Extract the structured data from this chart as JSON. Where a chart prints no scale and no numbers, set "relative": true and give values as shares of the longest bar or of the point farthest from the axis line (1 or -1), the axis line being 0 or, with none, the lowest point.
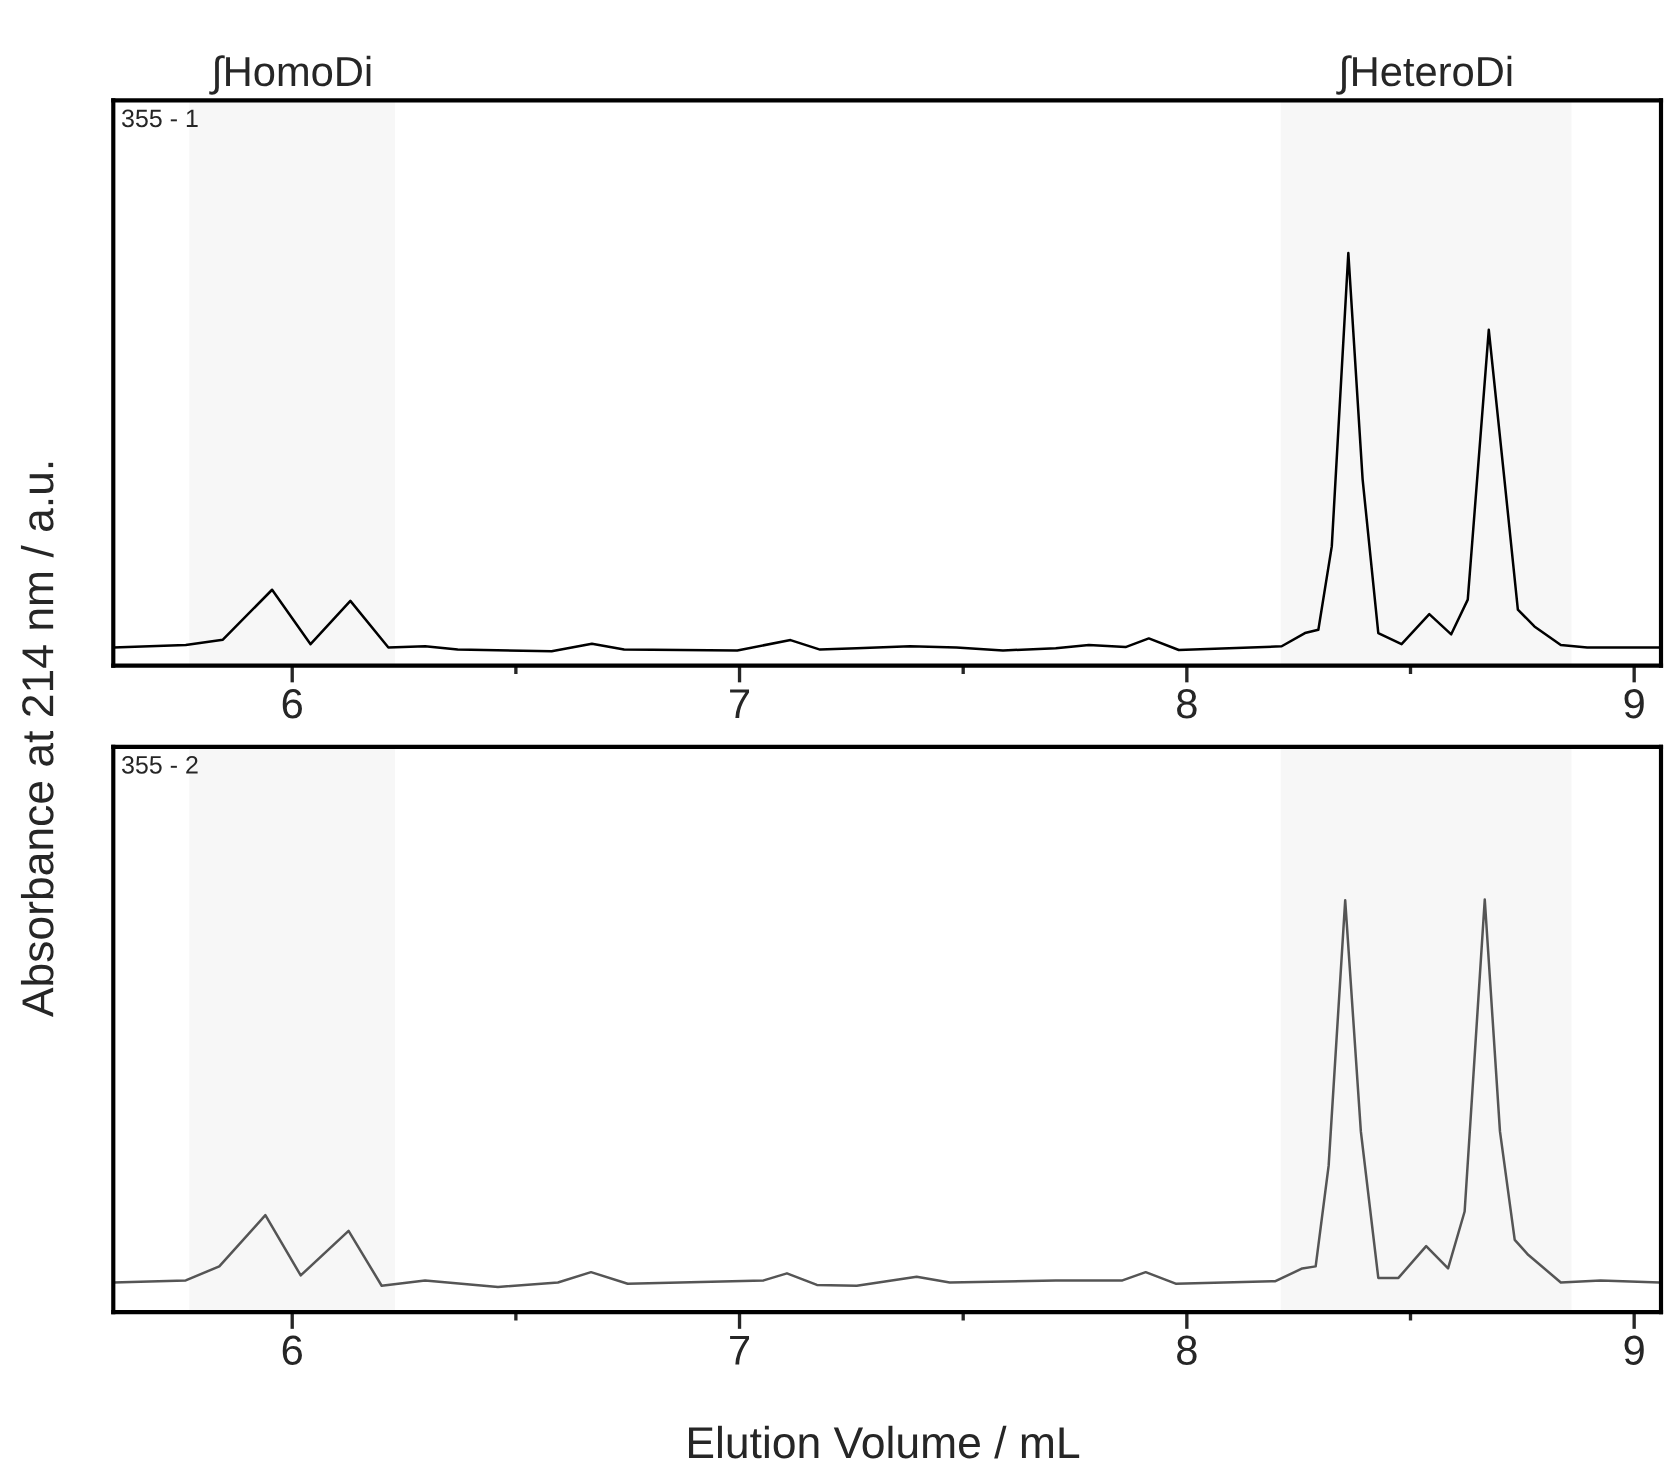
{
  "chart_data": [
    {
      "type": "line",
      "relative": true,
      "xlim": [
        5.6,
        9.06
      ],
      "xticks": [
        6,
        {
          "value": 6.5,
          "label": null
        },
        7,
        {
          "value": 7.5,
          "label": null
        },
        8,
        {
          "value": 8.5,
          "label": null
        },
        9
      ],
      "tick_labels": "x",
      "ylabel": "Absorbance at 214 nm / a.u.",
      "annotations": [
        "355 - 1"
      ],
      "bands": [
        {
          "axis": "x",
          "from": 5.77,
          "to": 6.23,
          "label": "∫HomoDi",
          "color": "#f7f7f7"
        },
        {
          "axis": "x",
          "from": 8.21,
          "to": 8.86,
          "label": "∫HeteroDi",
          "color": "#f7f7f7"
        }
      ],
      "series": [
        {
          "color": "#000000",
          "x": [
            5.6,
            5.762,
            5.845,
            5.955,
            6.041,
            6.13,
            6.215,
            6.297,
            6.37,
            6.58,
            6.67,
            6.742,
            6.995,
            7.114,
            7.18,
            7.262,
            7.381,
            7.485,
            7.589,
            7.707,
            7.781,
            7.863,
            7.915,
            7.982,
            8.212,
            8.264,
            8.294,
            8.324,
            8.361,
            8.393,
            8.428,
            8.48,
            8.542,
            8.591,
            8.628,
            8.675,
            8.71,
            8.74,
            8.777,
            8.836,
            8.895,
            9.057
          ],
          "values": [
            0.044,
            0.05,
            0.063,
            0.184,
            0.052,
            0.157,
            0.044,
            0.047,
            0.039,
            0.035,
            0.053,
            0.039,
            0.037,
            0.062,
            0.039,
            0.042,
            0.047,
            0.044,
            0.037,
            0.042,
            0.05,
            0.045,
            0.066,
            0.038,
            0.047,
            0.079,
            0.087,
            0.289,
            1.0,
            0.451,
            0.079,
            0.052,
            0.125,
            0.076,
            0.16,
            0.814,
            0.451,
            0.136,
            0.095,
            0.05,
            0.044,
            0.044
          ]
        }
      ]
    },
    {
      "type": "line",
      "relative": true,
      "xlim": [
        5.6,
        9.06
      ],
      "xticks": [
        6,
        {
          "value": 6.5,
          "label": null
        },
        7,
        {
          "value": 7.5,
          "label": null
        },
        8,
        {
          "value": 8.5,
          "label": null
        },
        9
      ],
      "tick_labels": "x",
      "xlabel": "Elution Volume / mL",
      "annotations": [
        "355 - 2"
      ],
      "bands": [
        {
          "axis": "x",
          "from": 5.77,
          "to": 6.23,
          "color": "#f7f7f7"
        },
        {
          "axis": "x",
          "from": 8.21,
          "to": 8.86,
          "color": "#f7f7f7"
        }
      ],
      "series": [
        {
          "color": "#555555",
          "x": [
            5.6,
            5.762,
            5.837,
            5.94,
            6.019,
            6.126,
            6.2,
            6.297,
            6.46,
            6.594,
            6.668,
            6.75,
            7.054,
            7.106,
            7.173,
            7.262,
            7.396,
            7.47,
            7.707,
            7.856,
            7.908,
            7.975,
            8.198,
            8.258,
            8.288,
            8.317,
            8.354,
            8.389,
            8.428,
            8.473,
            8.535,
            8.584,
            8.621,
            8.666,
            8.7,
            8.733,
            8.763,
            8.836,
            8.925,
            9.057
          ],
          "values": [
            0.072,
            0.077,
            0.111,
            0.235,
            0.089,
            0.197,
            0.064,
            0.077,
            0.061,
            0.072,
            0.097,
            0.069,
            0.077,
            0.094,
            0.066,
            0.064,
            0.086,
            0.072,
            0.077,
            0.077,
            0.097,
            0.069,
            0.075,
            0.106,
            0.111,
            0.355,
            0.998,
            0.438,
            0.083,
            0.083,
            0.16,
            0.106,
            0.244,
            1.0,
            0.438,
            0.175,
            0.139,
            0.072,
            0.077,
            0.072
          ]
        }
      ]
    }
  ]
}
